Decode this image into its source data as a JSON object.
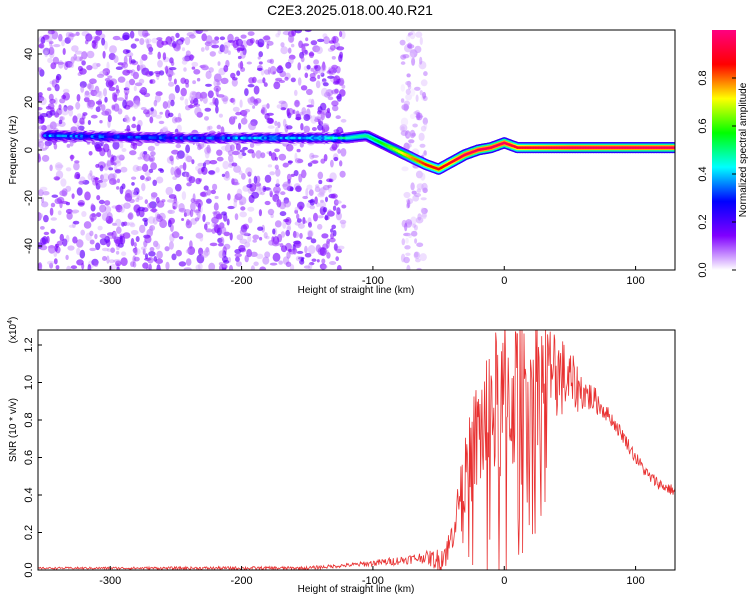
{
  "title": "C2E3.2025.018.00.40.R21",
  "chart_data": [
    {
      "type": "heatmap",
      "xlabel": "Height of straight line (km)",
      "ylabel": "Frequency (Hz)",
      "xlim": [
        -355,
        130
      ],
      "ylim": [
        -50,
        50
      ],
      "xticks": [
        -300,
        -200,
        -100,
        0,
        100
      ],
      "yticks": [
        -40,
        -20,
        0,
        20,
        40
      ],
      "colorbar": {
        "label": "Normalized spectral amplitude",
        "range": [
          0,
          1
        ],
        "ticks": [
          "0.0",
          "0.2",
          "0.4",
          "0.6",
          "0.8"
        ],
        "colors": [
          "#ffffff",
          "#8000ff",
          "#0000ff",
          "#00ffff",
          "#00ff00",
          "#ffff00",
          "#ff0000",
          "#ff0080"
        ]
      },
      "ridge": {
        "x": [
          -350,
          -300,
          -250,
          -200,
          -150,
          -120,
          -105,
          -90,
          -75,
          -60,
          -50,
          -40,
          -30,
          -20,
          -10,
          0,
          10,
          50,
          100,
          130
        ],
        "freq": [
          6,
          5.5,
          5,
          5,
          5,
          5,
          6,
          2,
          -2,
          -6,
          -8,
          -5,
          -2,
          0,
          1,
          3,
          1,
          1,
          1,
          1
        ],
        "amplitude": [
          0.35,
          0.3,
          0.3,
          0.35,
          0.4,
          0.45,
          0.5,
          0.6,
          0.75,
          0.85,
          0.85,
          0.9,
          0.95,
          0.95,
          0.95,
          0.95,
          0.9,
          0.95,
          0.95,
          0.95
        ]
      },
      "noise_region_x": [
        -355,
        -122
      ],
      "sparse_region_x": [
        -78,
        -60
      ]
    },
    {
      "type": "line",
      "xlabel": "Height of straight line (km)",
      "ylabel": "SNR (10 * v/v)",
      "scale_label": "(x10",
      "scale_exp": "4",
      "xlim": [
        -355,
        130
      ],
      "ylim": [
        0,
        1.28
      ],
      "xticks": [
        -300,
        -200,
        -100,
        0,
        100
      ],
      "yticks": [
        "0.0",
        "0.2",
        "0.4",
        "0.6",
        "0.8",
        "1.0",
        "1.2"
      ],
      "color": "#e83030",
      "envelope": {
        "x": [
          -355,
          -150,
          -110,
          -80,
          -60,
          -50,
          -42,
          -35,
          -28,
          -20,
          -10,
          0,
          10,
          20,
          30,
          40,
          50,
          60,
          70,
          80,
          90,
          100,
          110,
          120,
          130
        ],
        "y": [
          0.01,
          0.01,
          0.03,
          0.05,
          0.07,
          0.05,
          0.12,
          0.35,
          0.55,
          0.72,
          0.85,
          0.9,
          0.95,
          1.0,
          1.03,
          1.05,
          1.0,
          0.95,
          0.9,
          0.82,
          0.72,
          0.6,
          0.5,
          0.45,
          0.42
        ]
      },
      "jitter": {
        "x": [
          -355,
          -120,
          -60,
          -35,
          -20,
          0,
          20,
          40,
          60,
          80,
          130
        ],
        "amplitude": [
          0.005,
          0.01,
          0.03,
          0.12,
          0.35,
          0.45,
          0.4,
          0.25,
          0.1,
          0.04,
          0.03
        ]
      }
    }
  ]
}
